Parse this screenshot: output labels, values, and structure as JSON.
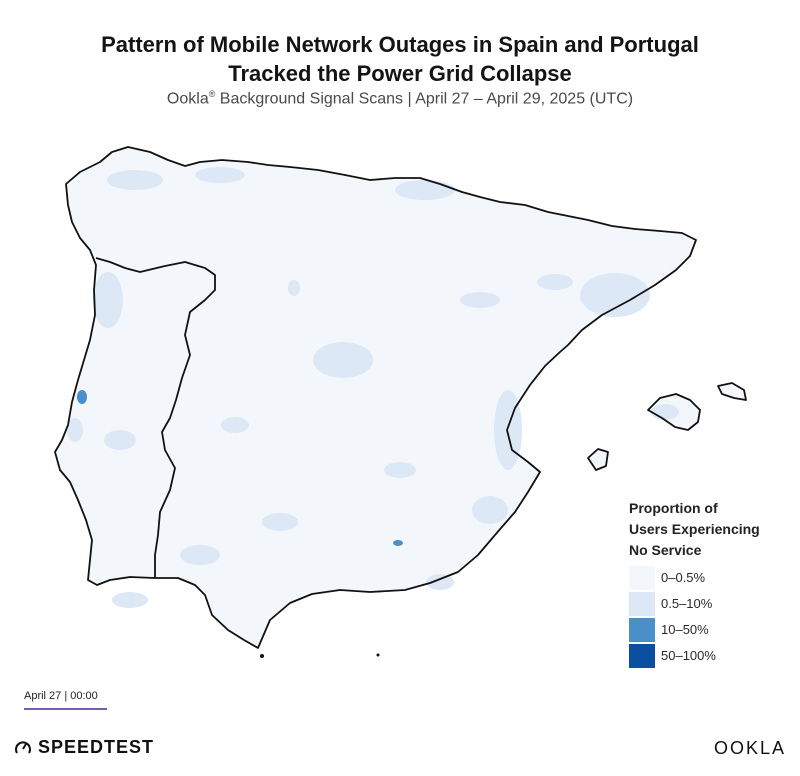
{
  "header": {
    "title_line1": "Pattern of Mobile Network Outages in Spain and Portugal",
    "title_line2": "Tracked the Power Grid Collapse",
    "subtitle_brand": "Ookla",
    "subtitle_reg": "®",
    "subtitle_rest": " Background Signal Scans | April 27 – April 29, 2025 (UTC)"
  },
  "legend": {
    "title_line1": "Proportion of",
    "title_line2": "Users Experiencing",
    "title_line3": "No Service",
    "items": [
      {
        "label": "0–0.5%",
        "color": "#f3f7fc"
      },
      {
        "label": "0.5–10%",
        "color": "#dce8f5"
      },
      {
        "label": "10–50%",
        "color": "#4a90c8"
      },
      {
        "label": "50–100%",
        "color": "#0b4fa0"
      }
    ]
  },
  "timeline": {
    "current_label": "April 27 | 00:00"
  },
  "branding": {
    "left_logo": "SPEEDTEST",
    "right_logo": "OOKLA"
  },
  "map": {
    "base_color": "#f3f7fc",
    "patch_color": "#dce8f5",
    "hotspot_color": "#4a90c8",
    "outline_color": "#111111",
    "regions": [
      "iberian-peninsula",
      "portugal-border",
      "mallorca",
      "menorca",
      "ibiza"
    ]
  }
}
